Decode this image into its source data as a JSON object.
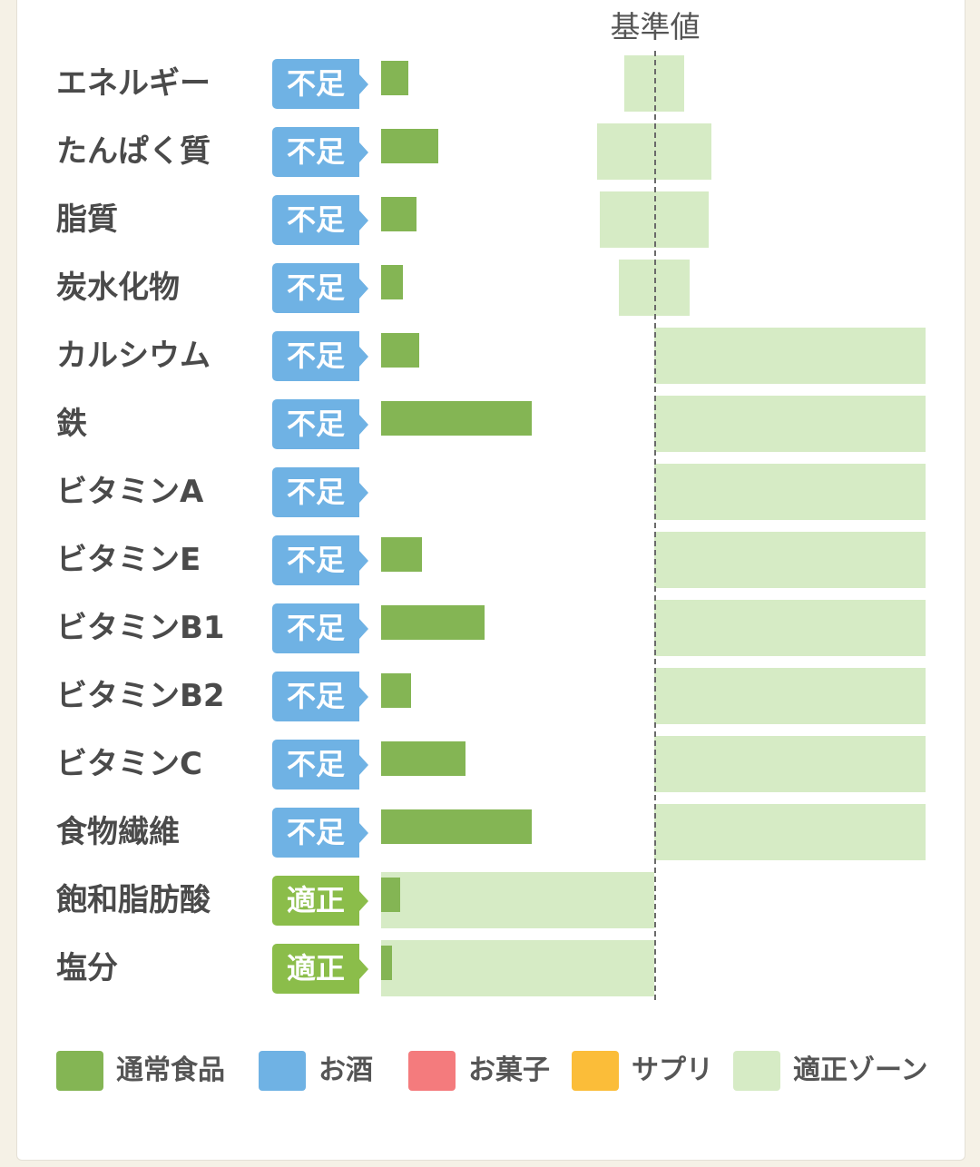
{
  "colors": {
    "normal_food": "#84b554",
    "alcohol": "#6fb2e4",
    "sweets": "#f47b7d",
    "supplement": "#fbbd39",
    "proper_zone": "#d6ebc5",
    "status_low": "#6fb2e4",
    "status_ok": "#8bbd4a"
  },
  "chart_data": {
    "type": "bar",
    "reference_label": "基準値",
    "reference_value": 100,
    "categories": [
      "エネルギー",
      "たんぱく質",
      "脂質",
      "炭水化物",
      "カルシウム",
      "鉄",
      "ビタミンA",
      "ビタミンE",
      "ビタミンB1",
      "ビタミンB2",
      "ビタミンC",
      "食物繊維",
      "飽和脂肪酸",
      "塩分"
    ],
    "status": [
      "不足",
      "不足",
      "不足",
      "不足",
      "不足",
      "不足",
      "不足",
      "不足",
      "不足",
      "不足",
      "不足",
      "不足",
      "適正",
      "適正"
    ],
    "series": [
      {
        "name": "通常食品",
        "values": [
          10,
          21,
          13,
          8,
          14,
          55,
          0,
          15,
          38,
          11,
          31,
          55,
          7,
          4
        ]
      }
    ],
    "proper_zone": [
      [
        89,
        111
      ],
      [
        79,
        121
      ],
      [
        80,
        120
      ],
      [
        87,
        113
      ],
      [
        100,
        200
      ],
      [
        100,
        200
      ],
      [
        100,
        200
      ],
      [
        100,
        200
      ],
      [
        100,
        200
      ],
      [
        100,
        200
      ],
      [
        100,
        200
      ],
      [
        100,
        200
      ],
      [
        0,
        100
      ],
      [
        0,
        100
      ]
    ],
    "legend": [
      {
        "label": "通常食品",
        "color": "#84b554"
      },
      {
        "label": "お酒",
        "color": "#6fb2e4"
      },
      {
        "label": "お菓子",
        "color": "#f47b7d"
      },
      {
        "label": "サプリ",
        "color": "#fbbd39"
      },
      {
        "label": "適正ゾーン",
        "color": "#d6ebc5"
      }
    ],
    "xlim": [
      0,
      200
    ],
    "legend_position": "bottom"
  }
}
